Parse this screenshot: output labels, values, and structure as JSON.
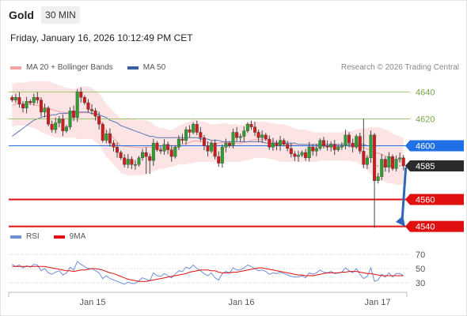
{
  "header": {
    "instrument": "Gold",
    "timeframe": "30 MIN",
    "datetime": "Friday, January 16, 2026 10:12:49 PM CET"
  },
  "legend_main": [
    {
      "label": "MA 20 + Bollinger Bands",
      "color": "#f4a3a3"
    },
    {
      "label": "MA 50",
      "color": "#3a5fa0"
    }
  ],
  "legend_rsi": [
    {
      "label": "RSI",
      "color": "#6f8ed8"
    },
    {
      "label": "9MA",
      "color": "#e01010"
    }
  ],
  "credit": "Research © 2026 Trading Central",
  "chart_data": {
    "type": "candlestick",
    "price_axis": {
      "ticks": [
        4640,
        4620,
        4600,
        4585,
        4560,
        4540
      ],
      "range": [
        4538,
        4652
      ]
    },
    "x_axis": {
      "ticks": [
        "Jan 15",
        "Jan 16",
        "Jan 17"
      ]
    },
    "levels": [
      {
        "value": 4640,
        "label": "4640",
        "style": "resistance-thin",
        "color": "#9dc56d"
      },
      {
        "value": 4620,
        "label": "4620",
        "style": "resistance-thin",
        "color": "#9dc56d"
      },
      {
        "value": 4600,
        "label": "4600",
        "style": "pivot",
        "color": "#1f6fe5"
      },
      {
        "value": 4585,
        "label": "4585",
        "style": "last-price",
        "color": "#2b2b2b"
      },
      {
        "value": 4560,
        "label": "4560",
        "style": "support",
        "color": "#e01010"
      },
      {
        "value": 4540,
        "label": "4540",
        "style": "support",
        "color": "#e01010"
      }
    ],
    "forecast_arrow": {
      "from": 4584,
      "to": 4541
    },
    "candles_close": [
      4634,
      4636,
      4631,
      4628,
      4633,
      4632,
      4636,
      4634,
      4625,
      4628,
      4616,
      4612,
      4617,
      4620,
      4611,
      4614,
      4626,
      4621,
      4640,
      4636,
      4632,
      4627,
      4626,
      4622,
      4616,
      4604,
      4609,
      4602,
      4599,
      4595,
      4591,
      4586,
      4590,
      4586,
      4586,
      4591,
      4595,
      4592,
      4589,
      4602,
      4597,
      4596,
      4601,
      4597,
      4592,
      4599,
      4605,
      4604,
      4612,
      4610,
      4616,
      4610,
      4606,
      4600,
      4596,
      4602,
      4592,
      4587,
      4599,
      4602,
      4600,
      4610,
      4606,
      4607,
      4611,
      4616,
      4614,
      4610,
      4606,
      4608,
      4605,
      4599,
      4602,
      4600,
      4604,
      4601,
      4598,
      4594,
      4592,
      4593,
      4595,
      4591,
      4599,
      4596,
      4598,
      4604,
      4600,
      4599,
      4601,
      4597,
      4599,
      4600,
      4608,
      4602,
      4599,
      4607,
      4596,
      4586,
      4591,
      4608,
      4574,
      4577,
      4590,
      4584,
      4592,
      4583,
      4590,
      4591,
      4585
    ],
    "bb_upper": [
      4646,
      4647,
      4647,
      4647,
      4647,
      4648,
      4648,
      4648,
      4648,
      4648,
      4648,
      4647,
      4646,
      4645,
      4644,
      4643,
      4643,
      4642,
      4643,
      4644,
      4644,
      4644,
      4643,
      4641,
      4639,
      4635,
      4631,
      4628,
      4625,
      4623,
      4620,
      4620,
      4621,
      4620,
      4620,
      4619,
      4619,
      4619,
      4618,
      4616,
      4614,
      4613,
      4613,
      4612,
      4612,
      4613,
      4615,
      4616,
      4617,
      4618,
      4620,
      4619,
      4618,
      4618,
      4617,
      4616,
      4616,
      4616,
      4617,
      4617,
      4616,
      4616,
      4616,
      4615,
      4616,
      4617,
      4618,
      4618,
      4618,
      4618,
      4618,
      4617,
      4617,
      4616,
      4616,
      4616,
      4615,
      4614,
      4613,
      4612,
      4612,
      4612,
      4611,
      4610,
      4610,
      4610,
      4610,
      4610,
      4610,
      4610,
      4610,
      4610,
      4611,
      4611,
      4611,
      4612,
      4613,
      4613,
      4613,
      4614,
      4614,
      4614,
      4613,
      4612,
      4611,
      4609,
      4608,
      4607,
      4606
    ],
    "bb_lower": [
      4614,
      4615,
      4615,
      4615,
      4615,
      4614,
      4613,
      4612,
      4610,
      4609,
      4608,
      4607,
      4606,
      4606,
      4606,
      4606,
      4606,
      4606,
      4605,
      4605,
      4605,
      4605,
      4605,
      4603,
      4601,
      4596,
      4592,
      4589,
      4586,
      4583,
      4580,
      4579,
      4578,
      4578,
      4578,
      4578,
      4578,
      4579,
      4580,
      4581,
      4582,
      4583,
      4583,
      4584,
      4584,
      4585,
      4586,
      4586,
      4586,
      4587,
      4587,
      4588,
      4588,
      4588,
      4588,
      4588,
      4588,
      4588,
      4588,
      4588,
      4588,
      4588,
      4588,
      4588,
      4589,
      4589,
      4590,
      4591,
      4591,
      4591,
      4591,
      4590,
      4590,
      4589,
      4588,
      4588,
      4588,
      4588,
      4588,
      4588,
      4588,
      4588,
      4588,
      4588,
      4588,
      4589,
      4589,
      4589,
      4589,
      4589,
      4589,
      4589,
      4589,
      4589,
      4588,
      4588,
      4586,
      4584,
      4582,
      4579,
      4576,
      4575,
      4574,
      4573,
      4572,
      4572,
      4571,
      4571,
      4571
    ],
    "ma50": [
      4607,
      4609,
      4611,
      4613,
      4615,
      4617,
      4619,
      4620,
      4621,
      4622,
      4622,
      4623,
      4623,
      4624,
      4624,
      4624,
      4625,
      4625,
      4625,
      4625,
      4625,
      4625,
      4624,
      4624,
      4623,
      4622,
      4621,
      4619,
      4618,
      4617,
      4615,
      4614,
      4613,
      4612,
      4611,
      4610,
      4609,
      4608,
      4607,
      4607,
      4606,
      4606,
      4606,
      4606,
      4606,
      4606,
      4606,
      4606,
      4606,
      4606,
      4606,
      4606,
      4605,
      4605,
      4605,
      4604,
      4604,
      4604,
      4603,
      4603,
      4603,
      4603,
      4603,
      4603,
      4603,
      4603,
      4603,
      4603,
      4603,
      4603,
      4602,
      4602,
      4602,
      4602,
      4602,
      4602,
      4602,
      4602,
      4602,
      4601,
      4601,
      4601,
      4601,
      4601,
      4601,
      4601,
      4601,
      4601,
      4601,
      4601,
      4601,
      4601,
      4601,
      4601,
      4601,
      4601,
      4601,
      4601,
      4600,
      4600,
      4600,
      4600,
      4600,
      4600,
      4600,
      4600,
      4600,
      4600,
      4600
    ],
    "rsi_axis": {
      "ticks": [
        70,
        50,
        30
      ],
      "range": [
        20,
        80
      ]
    },
    "rsi": [
      56,
      53,
      55,
      51,
      54,
      52,
      56,
      55,
      47,
      50,
      44,
      42,
      45,
      47,
      41,
      44,
      52,
      48,
      60,
      56,
      53,
      50,
      50,
      47,
      44,
      36,
      40,
      36,
      34,
      32,
      30,
      28,
      31,
      29,
      29,
      33,
      37,
      35,
      33,
      44,
      40,
      39,
      43,
      40,
      37,
      42,
      47,
      46,
      52,
      50,
      55,
      50,
      47,
      43,
      40,
      44,
      37,
      34,
      43,
      46,
      44,
      51,
      48,
      48,
      51,
      55,
      53,
      50,
      47,
      48,
      46,
      42,
      44,
      43,
      45,
      43,
      41,
      39,
      38,
      38,
      40,
      37,
      44,
      42,
      44,
      48,
      45,
      44,
      46,
      43,
      44,
      45,
      51,
      47,
      44,
      50,
      42,
      36,
      39,
      51,
      32,
      34,
      42,
      38,
      44,
      38,
      43,
      43,
      40
    ],
    "rsi_ma": [
      53,
      53,
      53,
      53,
      53,
      53,
      53,
      53,
      53,
      53,
      52,
      51,
      50,
      49,
      48,
      47,
      47,
      46,
      47,
      48,
      48,
      49,
      50,
      50,
      49,
      48,
      46,
      44,
      43,
      41,
      39,
      37,
      35,
      34,
      33,
      32,
      32,
      32,
      33,
      34,
      35,
      36,
      37,
      38,
      39,
      40,
      41,
      42,
      43,
      45,
      46,
      47,
      48,
      48,
      48,
      47,
      47,
      45,
      44,
      44,
      44,
      45,
      45,
      46,
      47,
      48,
      49,
      50,
      51,
      51,
      50,
      49,
      48,
      47,
      46,
      45,
      44,
      43,
      42,
      41,
      41,
      40,
      40,
      40,
      41,
      42,
      43,
      44,
      44,
      44,
      44,
      45,
      45,
      46,
      46,
      46,
      45,
      44,
      43,
      43,
      42,
      41,
      40,
      40,
      40,
      40,
      40,
      40,
      40
    ]
  }
}
